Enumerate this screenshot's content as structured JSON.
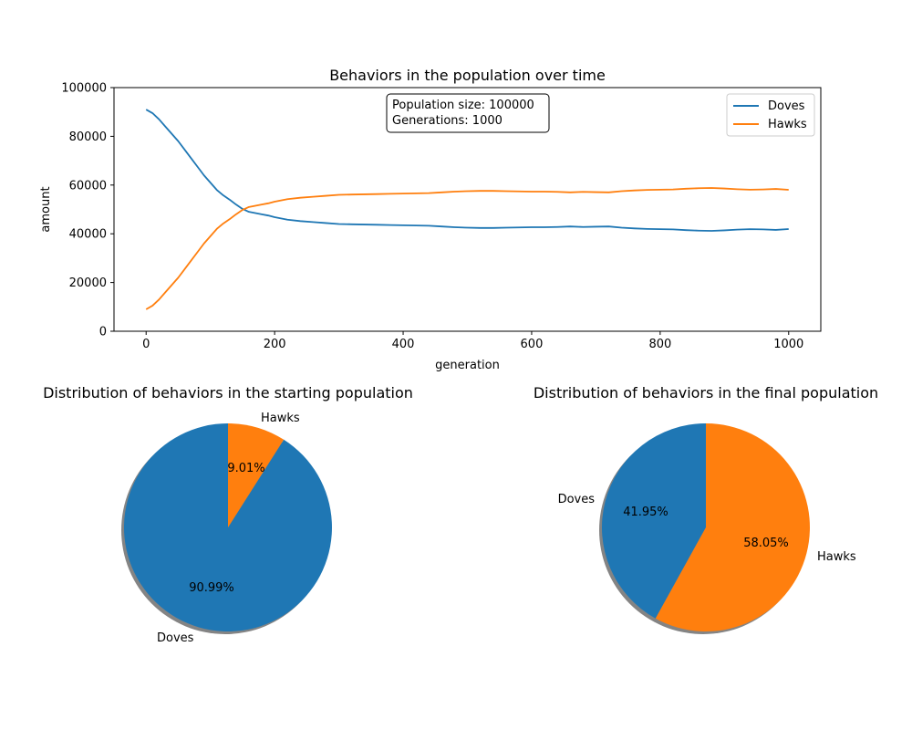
{
  "colors": {
    "doves": "#1f77b4",
    "hawks": "#ff7f0e"
  },
  "chart_data": [
    {
      "type": "line",
      "title": "Behaviors in the population over time",
      "xlabel": "generation",
      "ylabel": "amount",
      "xlim": [
        -50,
        1050
      ],
      "ylim": [
        0,
        100000
      ],
      "xticks": [
        0,
        200,
        400,
        600,
        800,
        1000
      ],
      "yticks": [
        0,
        20000,
        40000,
        60000,
        80000,
        100000
      ],
      "grid": false,
      "legend": {
        "position": "top-right",
        "entries": [
          "Doves",
          "Hawks"
        ]
      },
      "annotation": {
        "lines": [
          "Population size: 100000",
          "Generations: 1000"
        ],
        "position": "top-center"
      },
      "x": [
        0,
        10,
        20,
        30,
        40,
        50,
        60,
        70,
        80,
        90,
        100,
        110,
        120,
        130,
        140,
        150,
        160,
        170,
        180,
        190,
        200,
        220,
        240,
        260,
        280,
        300,
        320,
        340,
        360,
        380,
        400,
        420,
        440,
        460,
        480,
        500,
        520,
        540,
        560,
        580,
        600,
        620,
        640,
        660,
        680,
        700,
        720,
        740,
        760,
        780,
        800,
        820,
        840,
        860,
        880,
        900,
        920,
        940,
        960,
        980,
        1000
      ],
      "series": [
        {
          "name": "Doves",
          "values": [
            91000,
            89500,
            87000,
            84000,
            81000,
            78000,
            74500,
            71000,
            67500,
            64000,
            61000,
            58000,
            55800,
            54000,
            52000,
            50200,
            49000,
            48500,
            48000,
            47500,
            46800,
            45800,
            45200,
            44800,
            44400,
            44000,
            43900,
            43800,
            43700,
            43600,
            43500,
            43400,
            43300,
            43000,
            42700,
            42500,
            42400,
            42400,
            42500,
            42600,
            42700,
            42700,
            42800,
            43000,
            42800,
            42900,
            43000,
            42500,
            42200,
            42000,
            41900,
            41800,
            41500,
            41300,
            41200,
            41400,
            41700,
            41900,
            41800,
            41600,
            41950
          ]
        },
        {
          "name": "Hawks",
          "values": [
            9000,
            10500,
            13000,
            16000,
            19000,
            22000,
            25500,
            29000,
            32500,
            36000,
            39000,
            42000,
            44200,
            46000,
            48000,
            49800,
            51000,
            51500,
            52000,
            52500,
            53200,
            54200,
            54800,
            55200,
            55600,
            56000,
            56100,
            56200,
            56300,
            56400,
            56500,
            56600,
            56700,
            57000,
            57300,
            57500,
            57600,
            57600,
            57500,
            57400,
            57300,
            57300,
            57200,
            57000,
            57200,
            57100,
            57000,
            57500,
            57800,
            58000,
            58100,
            58200,
            58500,
            58700,
            58800,
            58600,
            58300,
            58100,
            58200,
            58400,
            58050
          ]
        }
      ]
    },
    {
      "type": "pie",
      "title": "Distribution of behaviors in the starting population",
      "shadow": true,
      "categories": [
        "Doves",
        "Hawks"
      ],
      "values": [
        90.99,
        9.01
      ],
      "labels": [
        "90.99%",
        "9.01%"
      ]
    },
    {
      "type": "pie",
      "title": "Distribution of behaviors in the final population",
      "shadow": true,
      "categories": [
        "Doves",
        "Hawks"
      ],
      "values": [
        41.95,
        58.05
      ],
      "labels": [
        "41.95%",
        "58.05%"
      ]
    }
  ]
}
